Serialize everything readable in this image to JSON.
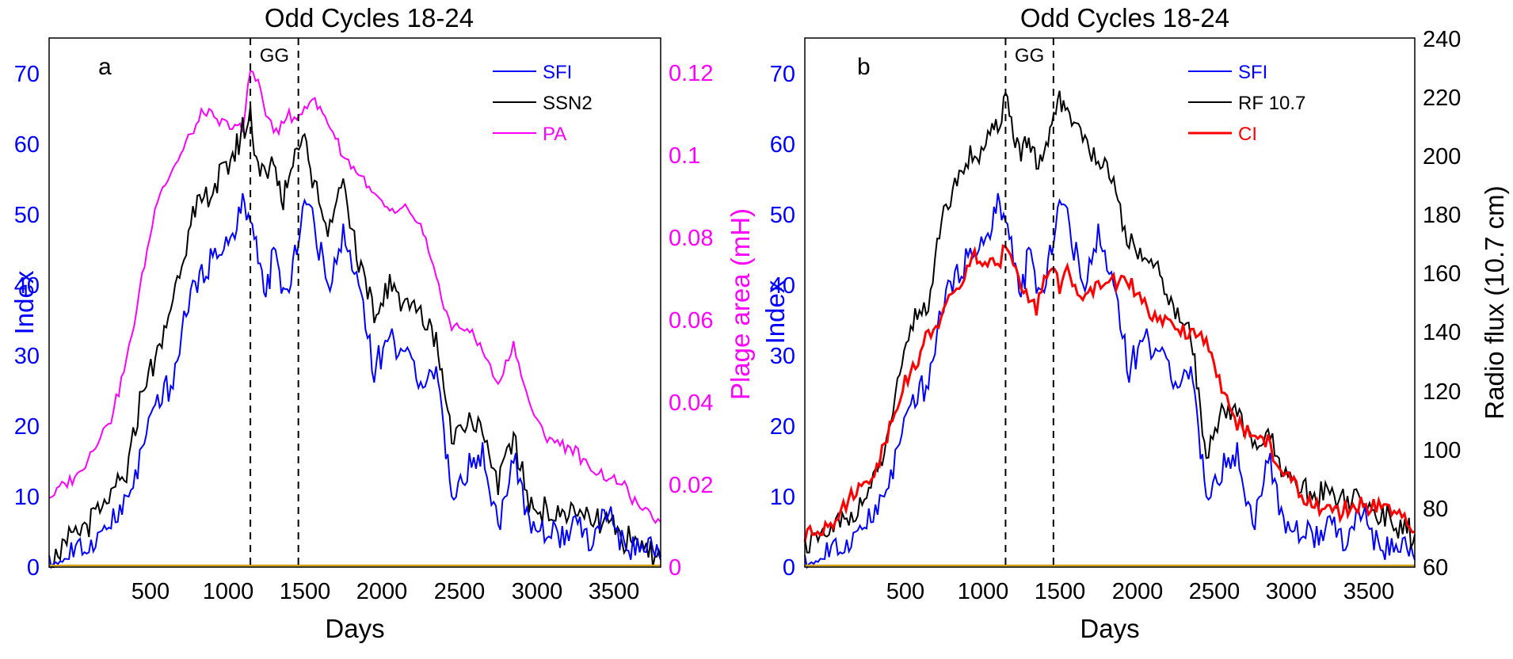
{
  "colors": {
    "sfi": "#0000ff",
    "ssn2": "#000000",
    "pa": "#ff00ff",
    "rf": "#000000",
    "ci": "#ff0000",
    "baseline": "#d4a017",
    "index_axis": "#0000ff",
    "plage_axis": "#ff00ff"
  },
  "chart_data": [
    {
      "type": "line",
      "panel": "a",
      "title": "Odd Cycles 18-24",
      "xlabel": "Days",
      "ylabel_left": "Index",
      "ylabel_right": "Plage area (mH)",
      "xlim": [
        0,
        3950
      ],
      "ylim_left": [
        0,
        75
      ],
      "ylim_right": [
        0,
        0.1285
      ],
      "xticks": [
        500,
        1000,
        1500,
        2000,
        2500,
        3000,
        3500
      ],
      "xtick_labels": [
        "500",
        "1000",
        "1500",
        "2000",
        "2500",
        "3000",
        "3500"
      ],
      "yticks_left": [
        0,
        10,
        20,
        30,
        40,
        50,
        60,
        70
      ],
      "ytick_labels_left": [
        "0",
        "10",
        "20",
        "30",
        "40",
        "50",
        "60",
        "70"
      ],
      "yticks_right": [
        0,
        0.02,
        0.04,
        0.06,
        0.08,
        0.1,
        0.12
      ],
      "ytick_labels_right": [
        "0",
        "0.02",
        "0.04",
        "0.06",
        "0.08",
        "0.1",
        "0.12"
      ],
      "vlines": [
        1300,
        1610
      ],
      "vline_label": "GG",
      "legend_position": "top-right",
      "legend": [
        "SFI",
        "SSN2",
        "PA"
      ],
      "series": [
        {
          "name": "SFI",
          "axis": "left",
          "color": "#0000ff",
          "x": [
            0,
            100,
            200,
            300,
            400,
            500,
            600,
            700,
            800,
            900,
            1000,
            1100,
            1200,
            1250,
            1300,
            1350,
            1400,
            1450,
            1500,
            1550,
            1600,
            1650,
            1700,
            1800,
            1900,
            2000,
            2100,
            2200,
            2300,
            2400,
            2500,
            2550,
            2600,
            2700,
            2800,
            2900,
            3000,
            3100,
            3200,
            3300,
            3400,
            3500,
            3600,
            3700,
            3800,
            3900,
            3950
          ],
          "values": [
            0.5,
            1.5,
            2.5,
            4,
            6,
            9,
            16,
            24,
            26,
            38,
            42,
            45,
            47,
            52,
            49,
            44,
            38,
            45,
            40,
            38,
            46,
            52,
            50,
            40,
            47,
            40,
            28,
            33,
            30,
            27,
            28,
            20,
            10,
            14,
            16,
            6,
            16,
            6,
            5,
            4,
            6,
            3,
            8,
            3,
            3,
            2,
            1
          ]
        },
        {
          "name": "SSN2",
          "axis": "left",
          "color": "#000000",
          "x": [
            0,
            100,
            200,
            300,
            400,
            500,
            600,
            700,
            800,
            900,
            1000,
            1100,
            1200,
            1250,
            1300,
            1350,
            1400,
            1450,
            1500,
            1550,
            1600,
            1650,
            1700,
            1800,
            1900,
            2000,
            2100,
            2200,
            2300,
            2400,
            2500,
            2550,
            2600,
            2700,
            2800,
            2900,
            3000,
            3100,
            3200,
            3300,
            3400,
            3500,
            3600,
            3700,
            3800,
            3900,
            3950
          ],
          "values": [
            1.5,
            3,
            5,
            7,
            10,
            13,
            25,
            30,
            38,
            48,
            52,
            55,
            59,
            62,
            64,
            57,
            55,
            58,
            52,
            55,
            60,
            62,
            55,
            48,
            55,
            43,
            35,
            40,
            38,
            36,
            33,
            25,
            18,
            22,
            19,
            12,
            18,
            9,
            8,
            7,
            8,
            6,
            7,
            4,
            3,
            2,
            1.5
          ]
        },
        {
          "name": "PA",
          "axis": "right",
          "color": "#ff00ff",
          "x": [
            0,
            100,
            200,
            300,
            400,
            500,
            600,
            700,
            800,
            900,
            1000,
            1100,
            1200,
            1250,
            1300,
            1350,
            1400,
            1450,
            1500,
            1550,
            1600,
            1650,
            1700,
            1800,
            1900,
            2000,
            2100,
            2200,
            2300,
            2400,
            2500,
            2600,
            2700,
            2800,
            2900,
            3000,
            3100,
            3200,
            3300,
            3400,
            3500,
            3600,
            3700,
            3800,
            3900,
            3950
          ],
          "values": [
            0.017,
            0.02,
            0.023,
            0.03,
            0.036,
            0.05,
            0.07,
            0.09,
            0.097,
            0.104,
            0.111,
            0.108,
            0.107,
            0.106,
            0.121,
            0.118,
            0.11,
            0.106,
            0.107,
            0.11,
            0.108,
            0.112,
            0.114,
            0.108,
            0.1,
            0.096,
            0.09,
            0.086,
            0.087,
            0.083,
            0.07,
            0.058,
            0.058,
            0.053,
            0.044,
            0.054,
            0.04,
            0.032,
            0.03,
            0.028,
            0.024,
            0.022,
            0.02,
            0.015,
            0.012,
            0.011
          ]
        }
      ]
    },
    {
      "type": "line",
      "panel": "b",
      "title": "Odd Cycles 18-24",
      "xlabel": "Days",
      "ylabel_left": "Index",
      "ylabel_right": "Radio flux  (10.7 cm)",
      "xlim": [
        0,
        3950
      ],
      "ylim_left": [
        0,
        75
      ],
      "ylim_right": [
        60,
        240
      ],
      "xticks": [
        500,
        1000,
        1500,
        2000,
        2500,
        3000,
        3500
      ],
      "xtick_labels": [
        "500",
        "1000",
        "1500",
        "2000",
        "2500",
        "3000",
        "3500"
      ],
      "yticks_left": [
        0,
        10,
        20,
        30,
        40,
        50,
        60,
        70
      ],
      "ytick_labels_left": [
        "0",
        "10",
        "20",
        "30",
        "40",
        "50",
        "60",
        "70"
      ],
      "yticks_right": [
        60,
        80,
        100,
        120,
        140,
        160,
        180,
        200,
        220,
        240
      ],
      "ytick_labels_right": [
        "60",
        "80",
        "100",
        "120",
        "140",
        "160",
        "180",
        "200",
        "220",
        "240"
      ],
      "vlines": [
        1300,
        1610
      ],
      "vline_label": "GG",
      "legend_position": "top-right",
      "legend": [
        "SFI",
        "RF 10.7",
        "CI"
      ],
      "series": [
        {
          "name": "SFI",
          "axis": "left",
          "color": "#0000ff",
          "x": [
            0,
            100,
            200,
            300,
            400,
            500,
            600,
            700,
            800,
            900,
            1000,
            1100,
            1200,
            1250,
            1300,
            1350,
            1400,
            1450,
            1500,
            1550,
            1600,
            1650,
            1700,
            1800,
            1900,
            2000,
            2100,
            2200,
            2300,
            2400,
            2500,
            2550,
            2600,
            2700,
            2800,
            2900,
            3000,
            3100,
            3200,
            3300,
            3400,
            3500,
            3600,
            3700,
            3800,
            3900,
            3950
          ],
          "values": [
            0.5,
            1.5,
            2.5,
            4,
            6,
            9,
            16,
            24,
            26,
            38,
            42,
            45,
            47,
            52,
            49,
            44,
            38,
            45,
            40,
            38,
            46,
            52,
            50,
            40,
            47,
            40,
            28,
            33,
            30,
            27,
            28,
            20,
            10,
            14,
            16,
            6,
            16,
            6,
            5,
            4,
            6,
            3,
            8,
            3,
            3,
            2,
            1
          ]
        },
        {
          "name": "RF 10.7",
          "axis": "right",
          "color": "#000000",
          "x": [
            0,
            100,
            200,
            300,
            400,
            500,
            600,
            700,
            800,
            900,
            1000,
            1100,
            1200,
            1250,
            1300,
            1350,
            1400,
            1450,
            1500,
            1550,
            1600,
            1650,
            1700,
            1800,
            1900,
            2000,
            2100,
            2200,
            2300,
            2400,
            2500,
            2550,
            2600,
            2700,
            2800,
            2900,
            3000,
            3100,
            3200,
            3300,
            3400,
            3500,
            3600,
            3700,
            3800,
            3900,
            3950
          ],
          "values": [
            68,
            70,
            73,
            78,
            85,
            95,
            120,
            145,
            150,
            180,
            195,
            200,
            205,
            210,
            222,
            208,
            200,
            205,
            195,
            200,
            210,
            220,
            215,
            205,
            200,
            188,
            170,
            165,
            160,
            145,
            140,
            118,
            100,
            112,
            115,
            100,
            105,
            90,
            88,
            84,
            86,
            82,
            83,
            78,
            76,
            72,
            71
          ]
        },
        {
          "name": "CI",
          "axis": "left",
          "color": "#ff0000",
          "x": [
            0,
            100,
            200,
            300,
            400,
            500,
            600,
            700,
            800,
            900,
            1000,
            1100,
            1200,
            1250,
            1300,
            1350,
            1400,
            1450,
            1500,
            1550,
            1600,
            1650,
            1700,
            1800,
            1900,
            2000,
            2100,
            2200,
            2300,
            2400,
            2500,
            2600,
            2700,
            2800,
            2900,
            3000,
            3100,
            3200,
            3300,
            3400,
            3500,
            3600,
            3700,
            3800,
            3900,
            3950
          ],
          "values": [
            4.5,
            5.5,
            7,
            10,
            12,
            16,
            24,
            28,
            33,
            36,
            40,
            44,
            43,
            42,
            46,
            44,
            40,
            38,
            37,
            41,
            43,
            40,
            42,
            37,
            40,
            41,
            40,
            37,
            35,
            34,
            33,
            32,
            25,
            21,
            18,
            18,
            13,
            11,
            9,
            8,
            8,
            9,
            8,
            8,
            6,
            5
          ]
        }
      ]
    }
  ]
}
